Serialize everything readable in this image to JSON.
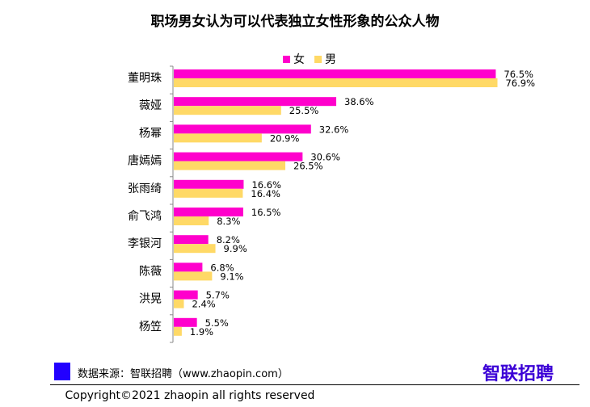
{
  "chart_data": {
    "type": "bar",
    "orientation": "horizontal",
    "title": "职场男女认为可以代表独立女性形象的公众人物",
    "categories": [
      "董明珠",
      "薇娅",
      "杨幂",
      "唐嫣嫣",
      "张雨绮",
      "俞飞鸿",
      "李银河",
      "陈薇",
      "洪晃",
      "杨笠"
    ],
    "series": [
      {
        "name": "女",
        "color": "#FF00CC",
        "values": [
          76.5,
          38.6,
          32.6,
          30.6,
          16.6,
          16.5,
          8.2,
          6.8,
          5.7,
          5.5
        ],
        "labels": [
          "76.5%",
          "38.6%",
          "32.6%",
          "30.6%",
          "16.6%",
          "16.5%",
          "8.2%",
          "6.8%",
          "5.7%",
          "5.5%"
        ]
      },
      {
        "name": "男",
        "color": "#FFD966",
        "values": [
          76.9,
          25.5,
          20.9,
          26.5,
          16.4,
          8.3,
          9.9,
          9.1,
          2.4,
          1.9
        ],
        "labels": [
          "76.9%",
          "25.5%",
          "20.9%",
          "26.5%",
          "16.4%",
          "8.3%",
          "9.9%",
          "9.1%",
          "2.4%",
          "1.9%"
        ]
      }
    ],
    "xlim": [
      0,
      80
    ],
    "grid": false,
    "legend": "top"
  },
  "footer": {
    "source": "数据来源：智联招聘（www.zhaopin.com）",
    "source_box_color": "#2200FF",
    "brand": "智联招聘",
    "brand_color": "#3B00D6",
    "copyright": "Copyright©2021  zhaopin all rights reserved"
  }
}
